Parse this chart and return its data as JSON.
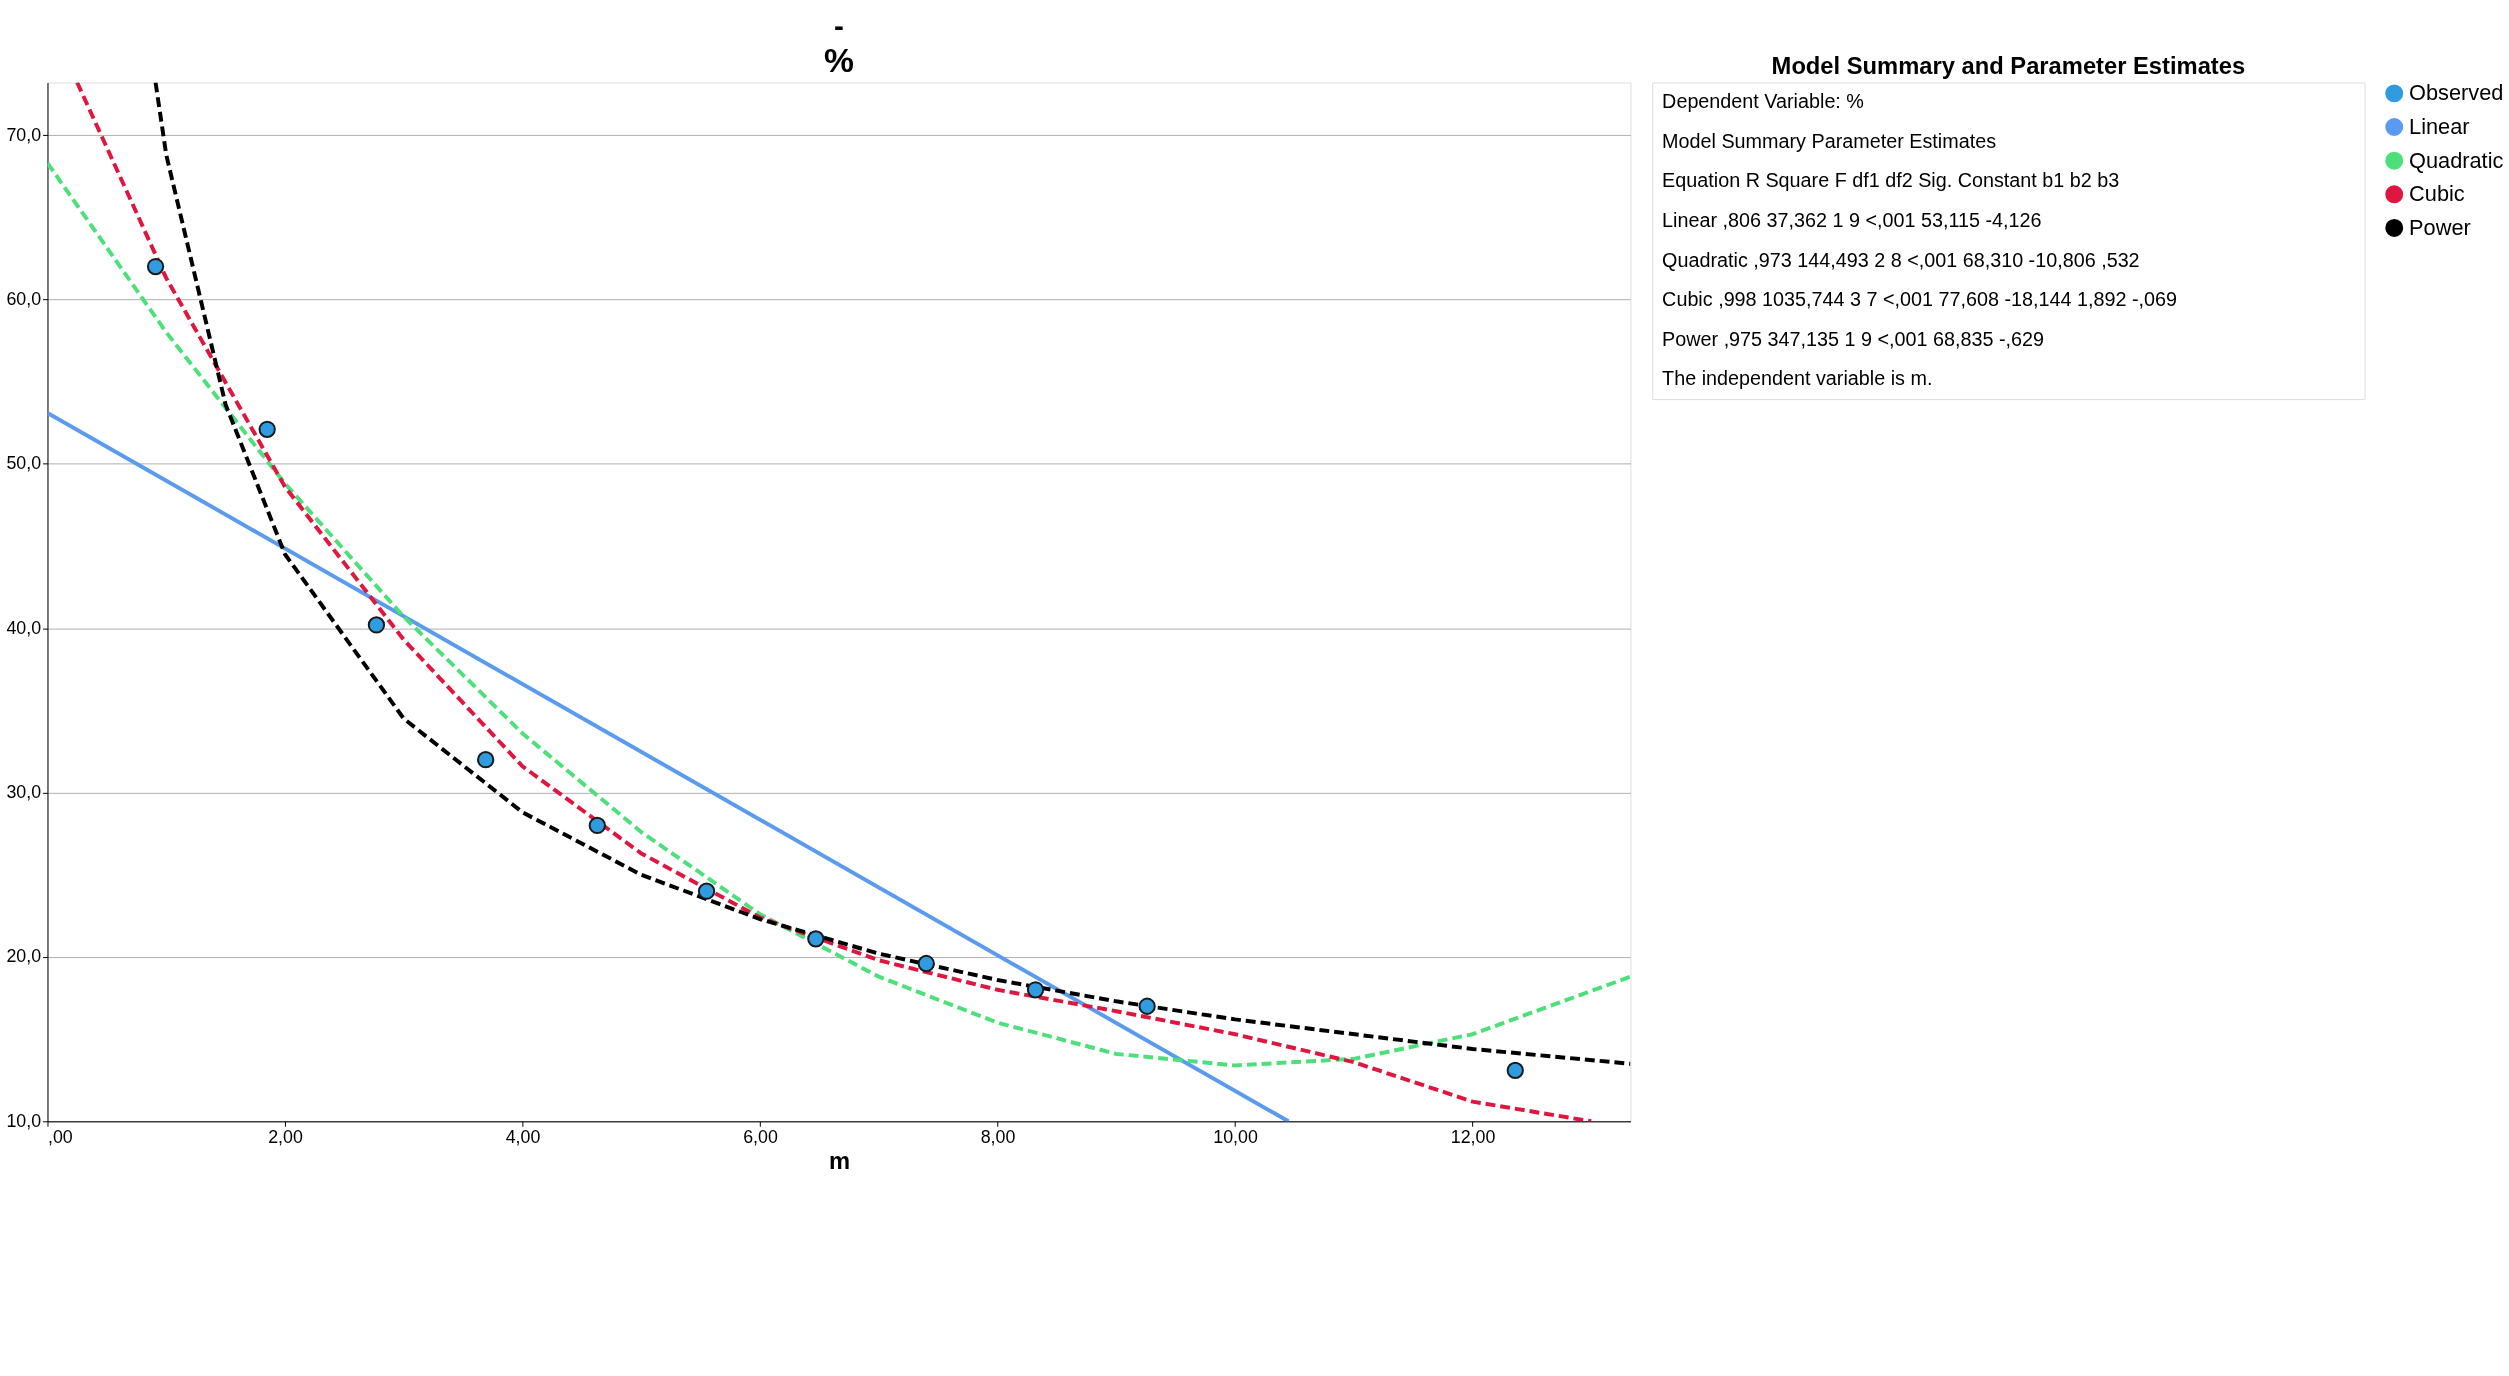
{
  "chart_data": [
    {
      "type": "line",
      "title": "-",
      "subtitle": "%",
      "xlabel": "m",
      "xlim": [
        0,
        13.33
      ],
      "ylim": [
        10,
        73.2
      ],
      "xticks": [
        {
          "value": 0,
          "label": ",00"
        },
        {
          "value": 2,
          "label": "2,00"
        },
        {
          "value": 4,
          "label": "4,00"
        },
        {
          "value": 6,
          "label": "6,00"
        },
        {
          "value": 8,
          "label": "8,00"
        },
        {
          "value": 10,
          "label": "10,00"
        },
        {
          "value": 12,
          "label": "12,00"
        }
      ],
      "yticks": [
        {
          "value": 10,
          "label": "10,0"
        },
        {
          "value": 20,
          "label": "20,0"
        },
        {
          "value": 30,
          "label": "30,0"
        },
        {
          "value": 40,
          "label": "40,0"
        },
        {
          "value": 50,
          "label": "50,0"
        },
        {
          "value": 60,
          "label": "60,0"
        },
        {
          "value": 70,
          "label": "70,0"
        }
      ],
      "grid": "y",
      "legend": "top right",
      "series": [
        {
          "name": "Observed",
          "type": "scatter",
          "marker": "circle",
          "color": "#2f9be0",
          "x": [
            0.91,
            1.85,
            2.77,
            3.69,
            4.63,
            5.55,
            6.47,
            7.4,
            8.32,
            9.26,
            12.36
          ],
          "values": [
            62.0,
            52.1,
            40.2,
            32.0,
            28.0,
            24.0,
            21.1,
            19.6,
            18.0,
            17.0,
            13.1
          ]
        },
        {
          "name": "Linear",
          "type": "line",
          "line_style": "solid",
          "color": "#5b9bef",
          "x": [
            0,
            10.45
          ],
          "values": [
            53.1,
            10.0
          ]
        },
        {
          "name": "Quadratic",
          "type": "line",
          "line_style": "dashed",
          "color": "#4de07a",
          "x": [
            0,
            1,
            2,
            3,
            4,
            5,
            6,
            7,
            8,
            9,
            10,
            11,
            12,
            13.33
          ],
          "values": [
            68.3,
            58.0,
            48.8,
            40.7,
            33.6,
            27.6,
            22.6,
            18.8,
            16.0,
            14.1,
            13.4,
            13.8,
            15.3,
            18.8
          ]
        },
        {
          "name": "Cubic",
          "type": "line",
          "line_style": "dashed",
          "color": "#e0163f",
          "x": [
            0.25,
            1,
            2,
            3,
            4,
            5,
            6,
            7,
            8,
            9,
            10,
            11,
            12,
            13
          ],
          "values": [
            73.2,
            61.3,
            48.6,
            39.3,
            31.6,
            26.3,
            22.4,
            19.8,
            18.0,
            16.7,
            15.3,
            13.6,
            11.2,
            10.0
          ]
        },
        {
          "name": "Power",
          "type": "line",
          "line_style": "dashed",
          "color": "#000000",
          "x": [
            0.91,
            1,
            1.5,
            2,
            3,
            4,
            5,
            6,
            7,
            8,
            9,
            10,
            12,
            13.33
          ],
          "values": [
            73.2,
            68.8,
            53.6,
            44.5,
            34.5,
            28.8,
            25.0,
            22.3,
            20.2,
            18.6,
            17.3,
            16.2,
            14.4,
            13.5
          ]
        }
      ]
    },
    {
      "type": "other",
      "title": "Model Summary and Parameter Estimates",
      "annotations": [
        "Dependent Variable:  %",
        "Model Summary          Parameter Estimates",
        "Equation   R Square   F   df1   df2   Sig.   Constant   b1   b2   b3",
        "Linear   ,806   37,362   1   9   <,001   53,115   -4,126",
        "Quadratic   ,973   144,493   2   8   <,001   68,310   -10,806   ,532",
        "Cubic   ,998   1035,744   3   7   <,001   77,608   -18,144   1,892   -,069",
        "Power   ,975   347,135   1   9   <,001   68,835   -,629",
        "The independent variable is m."
      ]
    }
  ]
}
